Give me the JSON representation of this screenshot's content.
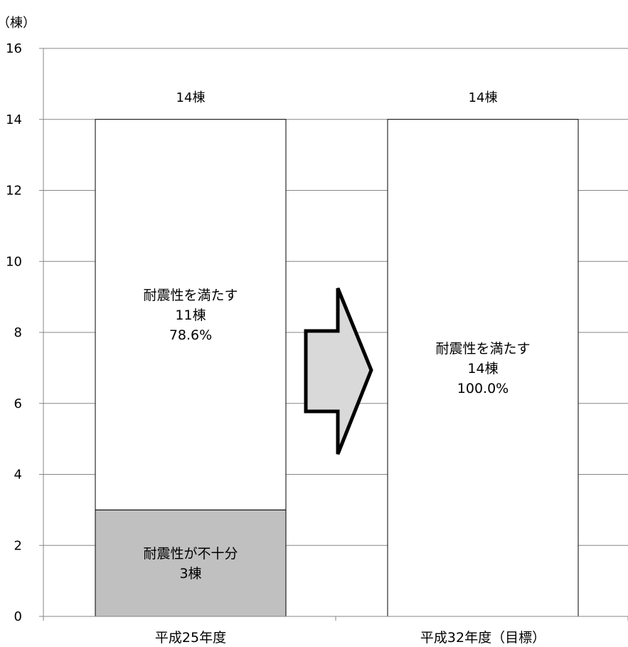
{
  "chart_data": {
    "type": "bar",
    "stacked": true,
    "unit_label": "（棟）",
    "ylim": [
      0,
      16
    ],
    "yticks": [
      "0",
      "2",
      "4",
      "6",
      "8",
      "10",
      "12",
      "14",
      "16"
    ],
    "grid": true,
    "categories": [
      "平成25年度",
      "平成32年度（目標）"
    ],
    "totals": [
      "14棟",
      "14棟"
    ],
    "bars": [
      {
        "segments": [
          {
            "value": 3,
            "color": "#c0c0c0",
            "label": [
              "耐震性が不十分",
              "3棟"
            ]
          },
          {
            "value": 11,
            "color": "#ffffff",
            "label": [
              "耐震性を満たす",
              "11棟",
              "78.6%"
            ]
          }
        ]
      },
      {
        "segments": [
          {
            "value": 14,
            "color": "#ffffff",
            "label": [
              "耐震性を満たす",
              "14棟",
              "100.0%"
            ]
          }
        ]
      }
    ],
    "arrow": {
      "direction": "right",
      "color": "#d9d9d9"
    }
  }
}
